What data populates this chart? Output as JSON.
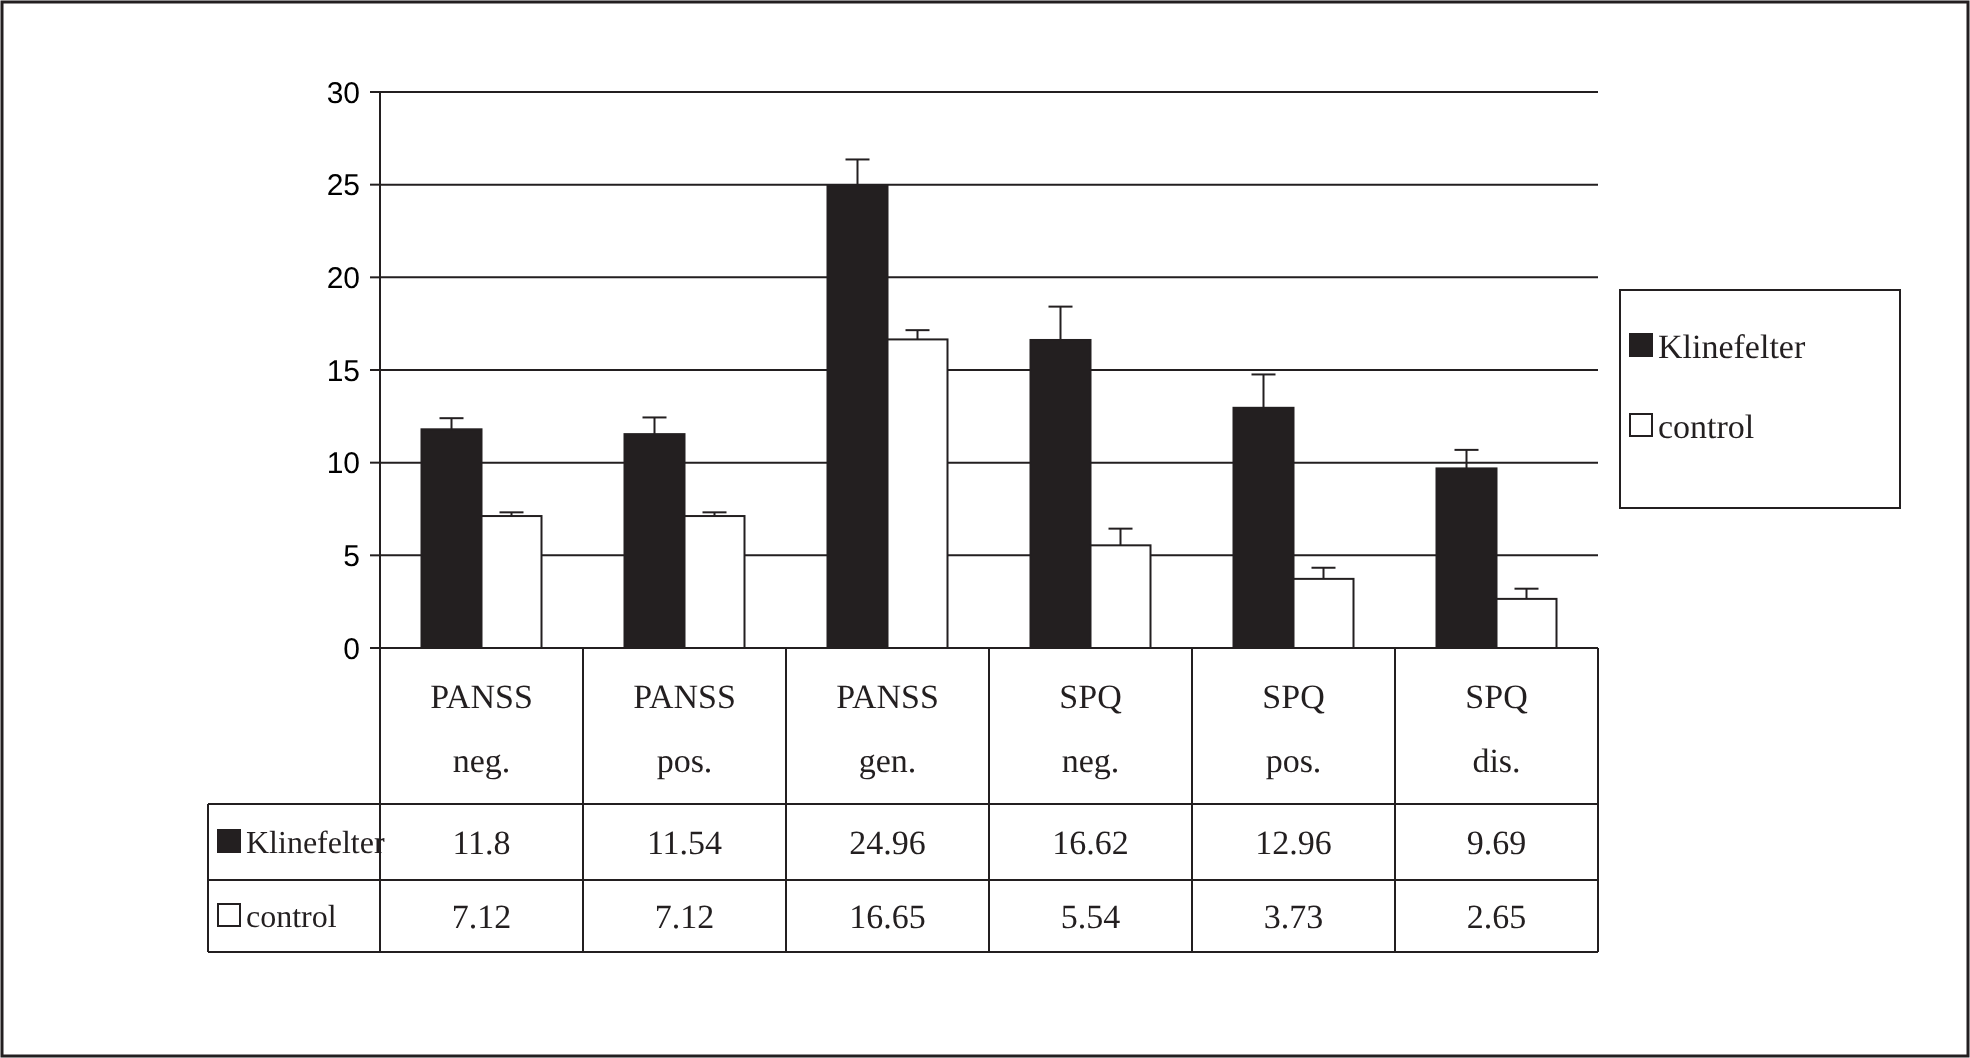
{
  "chart_data": {
    "type": "bar",
    "categories": [
      "PANSS neg.",
      "PANSS pos.",
      "PANSS gen.",
      "SPQ neg.",
      "SPQ pos.",
      "SPQ dis."
    ],
    "series": [
      {
        "name": "Klinefelter",
        "color": "#231f20",
        "values": [
          11.8,
          11.54,
          24.96,
          16.62,
          12.96,
          9.69
        ],
        "errors": [
          0.6,
          0.9,
          1.4,
          1.8,
          1.8,
          1.0
        ]
      },
      {
        "name": "control",
        "color": "#ffffff",
        "values": [
          7.12,
          7.12,
          16.65,
          5.54,
          3.73,
          2.65
        ],
        "errors": [
          0.2,
          0.2,
          0.5,
          0.9,
          0.6,
          0.55
        ]
      }
    ],
    "ylim": [
      0,
      30
    ],
    "yticks": [
      0,
      5,
      10,
      15,
      20,
      25,
      30
    ],
    "grid": "y",
    "legend": "right",
    "data_labels": true
  }
}
